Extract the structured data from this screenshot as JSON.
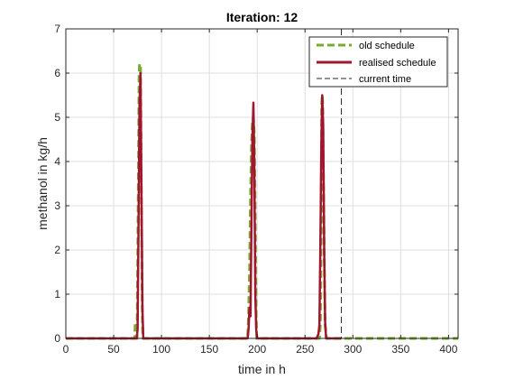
{
  "chart_data": {
    "type": "line",
    "title": "Iteration: 12",
    "xlabel": "time in h",
    "ylabel": "methanol in kg/h",
    "xlim": [
      0,
      410
    ],
    "ylim": [
      0,
      7
    ],
    "xticks": [
      0,
      50,
      100,
      150,
      200,
      250,
      300,
      350,
      400
    ],
    "yticks": [
      0,
      1,
      2,
      3,
      4,
      5,
      6,
      7
    ],
    "grid": true,
    "legend_position": "top-right",
    "current_time": 288,
    "series": [
      {
        "name": "old schedule",
        "color": "#77ac30",
        "style": "dashed",
        "x": [
          0,
          72,
          72.5,
          74,
          74.5,
          76,
          76.5,
          77,
          78,
          79,
          80,
          80.5,
          190,
          191,
          192,
          193,
          194,
          195,
          196,
          197,
          198,
          199,
          199.5,
          265,
          266,
          266.5,
          267,
          267.5,
          268,
          268.5,
          269,
          270,
          271,
          272,
          272.5,
          410
        ],
        "y": [
          0,
          0,
          0.35,
          0.35,
          0,
          4.0,
          5.9,
          6.2,
          6.2,
          3.0,
          0.5,
          0,
          0,
          0.5,
          1.5,
          3.2,
          4.3,
          4.9,
          5.0,
          4.6,
          2.5,
          0.5,
          0,
          0,
          0.3,
          1.5,
          3.5,
          5.3,
          5.5,
          5.3,
          4.2,
          2.0,
          0.3,
          0.1,
          0,
          0
        ]
      },
      {
        "name": "realised schedule",
        "color": "#a2142f",
        "style": "solid",
        "x": [
          0,
          74,
          75,
          76,
          77,
          78,
          79,
          80,
          81,
          190,
          191,
          192,
          193,
          194,
          195,
          196,
          197,
          198,
          199,
          200,
          262,
          264,
          265,
          266,
          267,
          268,
          269,
          270,
          271,
          272,
          288
        ],
        "y": [
          0,
          0,
          0.2,
          2.5,
          5.3,
          6.0,
          3.5,
          0.7,
          0,
          0,
          0.2,
          0.7,
          0.5,
          2.5,
          4.5,
          5.33,
          4.0,
          1.0,
          0.2,
          0,
          0,
          0.1,
          0.3,
          2.0,
          4.3,
          5.5,
          4.8,
          2.0,
          0.4,
          0,
          0
        ]
      },
      {
        "name": "current time",
        "color": "#262626",
        "style": "dashed"
      }
    ]
  }
}
